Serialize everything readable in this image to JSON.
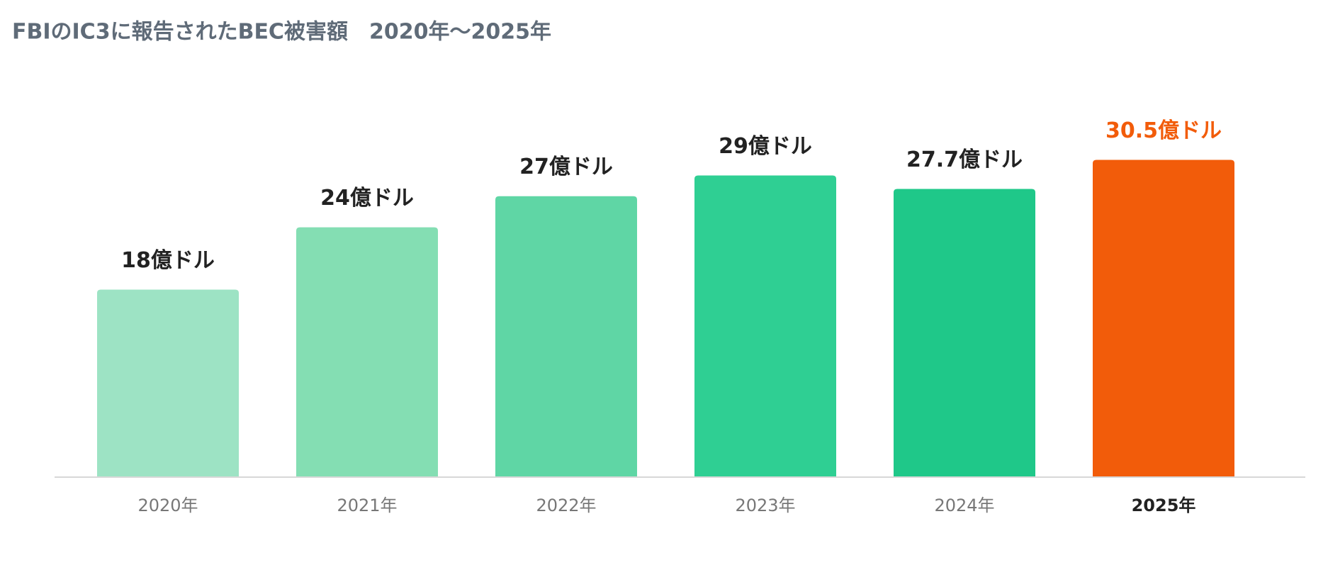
{
  "chart_data": {
    "type": "bar",
    "title": "FBIのIC3に報告されたBEC被害額　2020年～2025年",
    "categories": [
      "2020年",
      "2021年",
      "2022年",
      "2023年",
      "2024年",
      "2025年"
    ],
    "values": [
      18,
      24,
      27,
      29,
      27.7,
      30.5
    ],
    "value_labels": [
      "18億ドル",
      "24億ドル",
      "27億ドル",
      "29億ドル",
      "27.7億ドル",
      "30.5億ドル"
    ],
    "colors": [
      "#9de3c4",
      "#84deb3",
      "#5fd6a5",
      "#2fcf93",
      "#1fc889",
      "#f25c0a"
    ],
    "highlight_color": "#f25c0a"
  }
}
